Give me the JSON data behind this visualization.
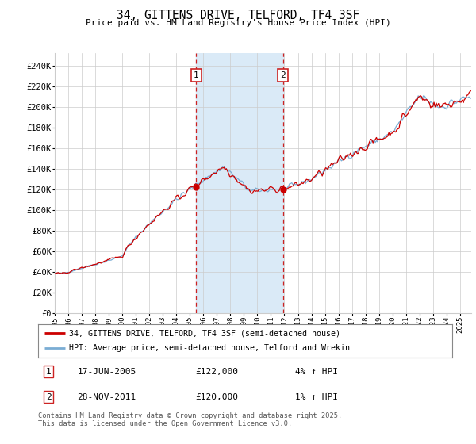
{
  "title": "34, GITTENS DRIVE, TELFORD, TF4 3SF",
  "subtitle": "Price paid vs. HM Land Registry's House Price Index (HPI)",
  "xlim_start": 1995.0,
  "xlim_end": 2025.83,
  "ylim_min": 0,
  "ylim_max": 252000,
  "yticks": [
    0,
    20000,
    40000,
    60000,
    80000,
    100000,
    120000,
    140000,
    160000,
    180000,
    200000,
    220000,
    240000
  ],
  "ytick_labels": [
    "£0",
    "£20K",
    "£40K",
    "£60K",
    "£80K",
    "£100K",
    "£120K",
    "£140K",
    "£160K",
    "£180K",
    "£200K",
    "£220K",
    "£240K"
  ],
  "xtick_years": [
    1995,
    1996,
    1997,
    1998,
    1999,
    2000,
    2001,
    2002,
    2003,
    2004,
    2005,
    2006,
    2007,
    2008,
    2009,
    2010,
    2011,
    2012,
    2013,
    2014,
    2015,
    2016,
    2017,
    2018,
    2019,
    2020,
    2021,
    2022,
    2023,
    2024,
    2025
  ],
  "transaction1_x": 2005.46,
  "transaction1_y": 122000,
  "transaction2_x": 2011.91,
  "transaction2_y": 120000,
  "shade_color": "#daeaf7",
  "line_red_color": "#cc0000",
  "line_blue_color": "#7aadd4",
  "background_color": "#ffffff",
  "grid_color": "#cccccc",
  "legend_label_red": "34, GITTENS DRIVE, TELFORD, TF4 3SF (semi-detached house)",
  "legend_label_blue": "HPI: Average price, semi-detached house, Telford and Wrekin",
  "annot1_date": "17-JUN-2005",
  "annot1_price": "£122,000",
  "annot1_hpi": "4% ↑ HPI",
  "annot2_date": "28-NOV-2011",
  "annot2_price": "£120,000",
  "annot2_hpi": "1% ↑ HPI",
  "footer": "Contains HM Land Registry data © Crown copyright and database right 2025.\nThis data is licensed under the Open Government Licence v3.0."
}
